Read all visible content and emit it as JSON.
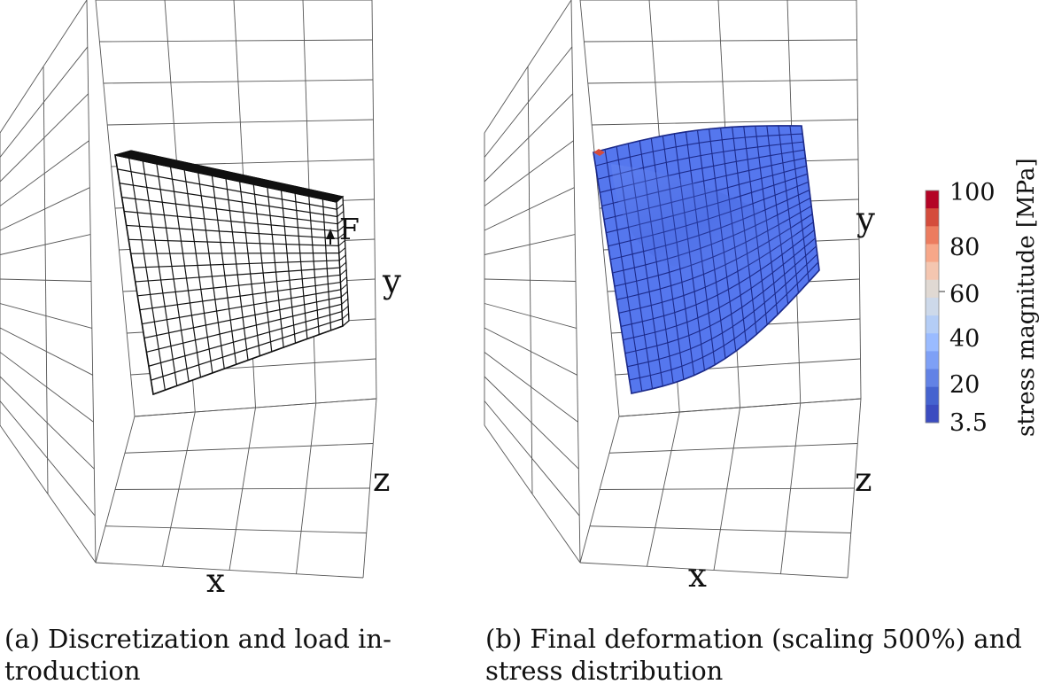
{
  "panels": [
    {
      "id": "a",
      "caption_line1": "(a) Discretization and load in-",
      "caption_line2": "troduction",
      "axis_labels": {
        "x": "x",
        "y": "y",
        "z": "z"
      },
      "load_label": "F"
    },
    {
      "id": "b",
      "caption_line1": "(b) Final deformation (scaling 500%) and",
      "caption_line2": "stress distribution",
      "axis_labels": {
        "x": "x",
        "y": "y",
        "z": "z"
      }
    }
  ],
  "colorbar": {
    "title": "stress magnitude [MPa]",
    "min": 3.5,
    "max": 100,
    "tick_labels": [
      "100",
      "80",
      "60",
      "40",
      "20",
      "3.5"
    ],
    "colors": [
      "#b40426",
      "#d44c3c",
      "#ec7c5f",
      "#f7a789",
      "#f4c6b0",
      "#e0d9d3",
      "#cdd9ea",
      "#b4cdf6",
      "#9abbff",
      "#7ea0f6",
      "#6282e5",
      "#4563cf",
      "#3b4cc0"
    ]
  },
  "colors": {
    "mesh_face_a": "#ffffff",
    "mesh_line": "#111111",
    "deformed_face": "#5577ee",
    "deformed_shade": "#4a68dd",
    "grid_line": "#555555"
  }
}
